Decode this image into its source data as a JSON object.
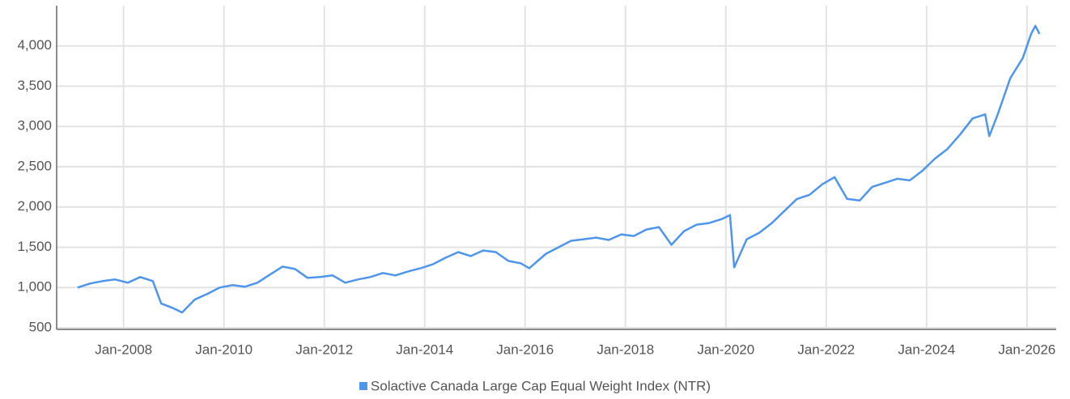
{
  "chart_data": {
    "type": "line",
    "x": [
      "2007-02",
      "2007-05",
      "2007-08",
      "2007-11",
      "2008-02",
      "2008-05",
      "2008-08",
      "2008-10",
      "2009-01",
      "2009-03",
      "2009-06",
      "2009-09",
      "2009-12",
      "2010-03",
      "2010-06",
      "2010-09",
      "2010-12",
      "2011-03",
      "2011-06",
      "2011-09",
      "2011-12",
      "2012-03",
      "2012-06",
      "2012-09",
      "2012-12",
      "2013-03",
      "2013-06",
      "2013-09",
      "2013-12",
      "2014-03",
      "2014-06",
      "2014-09",
      "2014-12",
      "2015-03",
      "2015-06",
      "2015-09",
      "2015-12",
      "2016-02",
      "2016-06",
      "2016-09",
      "2016-12",
      "2017-03",
      "2017-06",
      "2017-09",
      "2017-12",
      "2018-03",
      "2018-06",
      "2018-09",
      "2018-12",
      "2019-03",
      "2019-06",
      "2019-09",
      "2019-12",
      "2020-02",
      "2020-03",
      "2020-06",
      "2020-09",
      "2020-12",
      "2021-03",
      "2021-06",
      "2021-09",
      "2021-12",
      "2022-03",
      "2022-06",
      "2022-09",
      "2022-12",
      "2023-03",
      "2023-06",
      "2023-09",
      "2023-12",
      "2024-03",
      "2024-06",
      "2024-09",
      "2024-12",
      "2025-03",
      "2025-04",
      "2025-06",
      "2025-09",
      "2025-12",
      "2026-02",
      "2026-03",
      "2026-04"
    ],
    "series": [
      {
        "name": "Solactive Canada Large Cap Equal Weight Index (NTR)",
        "color": "#4e95ee",
        "values": [
          1000,
          1050,
          1080,
          1100,
          1060,
          1130,
          1080,
          800,
          740,
          690,
          850,
          920,
          1000,
          1030,
          1010,
          1060,
          1160,
          1260,
          1230,
          1120,
          1130,
          1150,
          1060,
          1100,
          1130,
          1180,
          1150,
          1200,
          1240,
          1290,
          1370,
          1440,
          1390,
          1460,
          1440,
          1330,
          1300,
          1240,
          1420,
          1500,
          1580,
          1600,
          1620,
          1590,
          1660,
          1640,
          1720,
          1750,
          1530,
          1700,
          1780,
          1800,
          1850,
          1900,
          1250,
          1600,
          1680,
          1800,
          1950,
          2100,
          2150,
          2280,
          2370,
          2100,
          2080,
          2250,
          2300,
          2350,
          2330,
          2450,
          2600,
          2720,
          2900,
          3100,
          3150,
          2880,
          3150,
          3600,
          3850,
          4150,
          4250,
          4150
        ]
      }
    ],
    "xlim": [
      "2006-09",
      "2026-08"
    ],
    "xticks": [
      {
        "value": "2008-01",
        "label": "Jan-2008"
      },
      {
        "value": "2010-01",
        "label": "Jan-2010"
      },
      {
        "value": "2012-01",
        "label": "Jan-2012"
      },
      {
        "value": "2014-01",
        "label": "Jan-2014"
      },
      {
        "value": "2016-01",
        "label": "Jan-2016"
      },
      {
        "value": "2018-01",
        "label": "Jan-2018"
      },
      {
        "value": "2020-01",
        "label": "Jan-2020"
      },
      {
        "value": "2022-01",
        "label": "Jan-2022"
      },
      {
        "value": "2024-01",
        "label": "Jan-2024"
      },
      {
        "value": "2026-01",
        "label": "Jan-2026"
      }
    ],
    "ylim": [
      500,
      4500
    ],
    "yticks": [
      500,
      {
        "value": 1000,
        "label": "1,000"
      },
      {
        "value": 1500,
        "label": "1,500"
      },
      {
        "value": 2000,
        "label": "2,000"
      },
      {
        "value": 2500,
        "label": "2,500"
      },
      {
        "value": 3000,
        "label": "3,000"
      },
      {
        "value": 3500,
        "label": "3,500"
      },
      {
        "value": 4000,
        "label": "4,000"
      }
    ],
    "grid": true,
    "legend": "bottom"
  }
}
